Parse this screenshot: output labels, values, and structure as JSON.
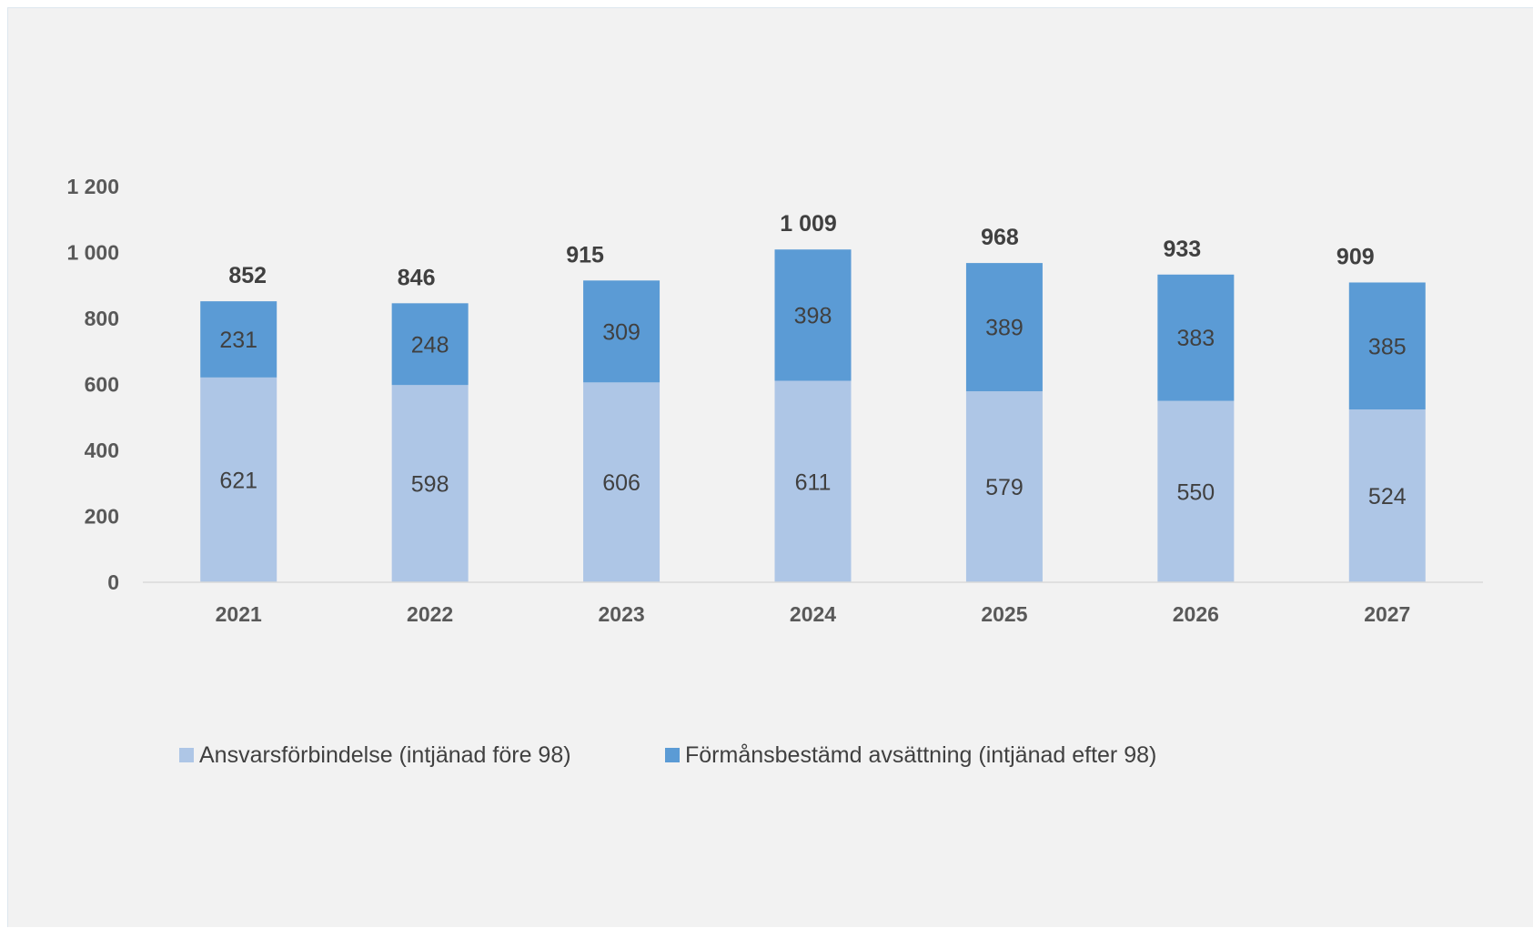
{
  "chart_data": {
    "type": "bar",
    "stacked": true,
    "title": "",
    "xlabel": "",
    "ylabel": "",
    "ylim": [
      0,
      1200
    ],
    "yticks": [
      0,
      200,
      400,
      600,
      800,
      1000,
      1200
    ],
    "ytick_labels": [
      "0",
      "200",
      "400",
      "600",
      "800",
      "1 000",
      "1 200"
    ],
    "grid": false,
    "legend_position": "bottom",
    "categories": [
      "2021",
      "2022",
      "2023",
      "2024",
      "2025",
      "2026",
      "2027"
    ],
    "series": [
      {
        "name": "Ansvarsförbindelse (intjänad före 98)",
        "color": "#aec6e6",
        "values": [
          621,
          598,
          606,
          611,
          579,
          550,
          524
        ]
      },
      {
        "name": "Förmånsbestämd avsättning (intjänad efter 98)",
        "color": "#5b9bd5",
        "values": [
          231,
          248,
          309,
          398,
          389,
          383,
          385
        ]
      }
    ],
    "totals": [
      852,
      846,
      915,
      1009,
      968,
      933,
      909
    ],
    "total_labels": [
      "852",
      "846",
      "915",
      "1 009",
      "968",
      "933",
      "909"
    ]
  }
}
